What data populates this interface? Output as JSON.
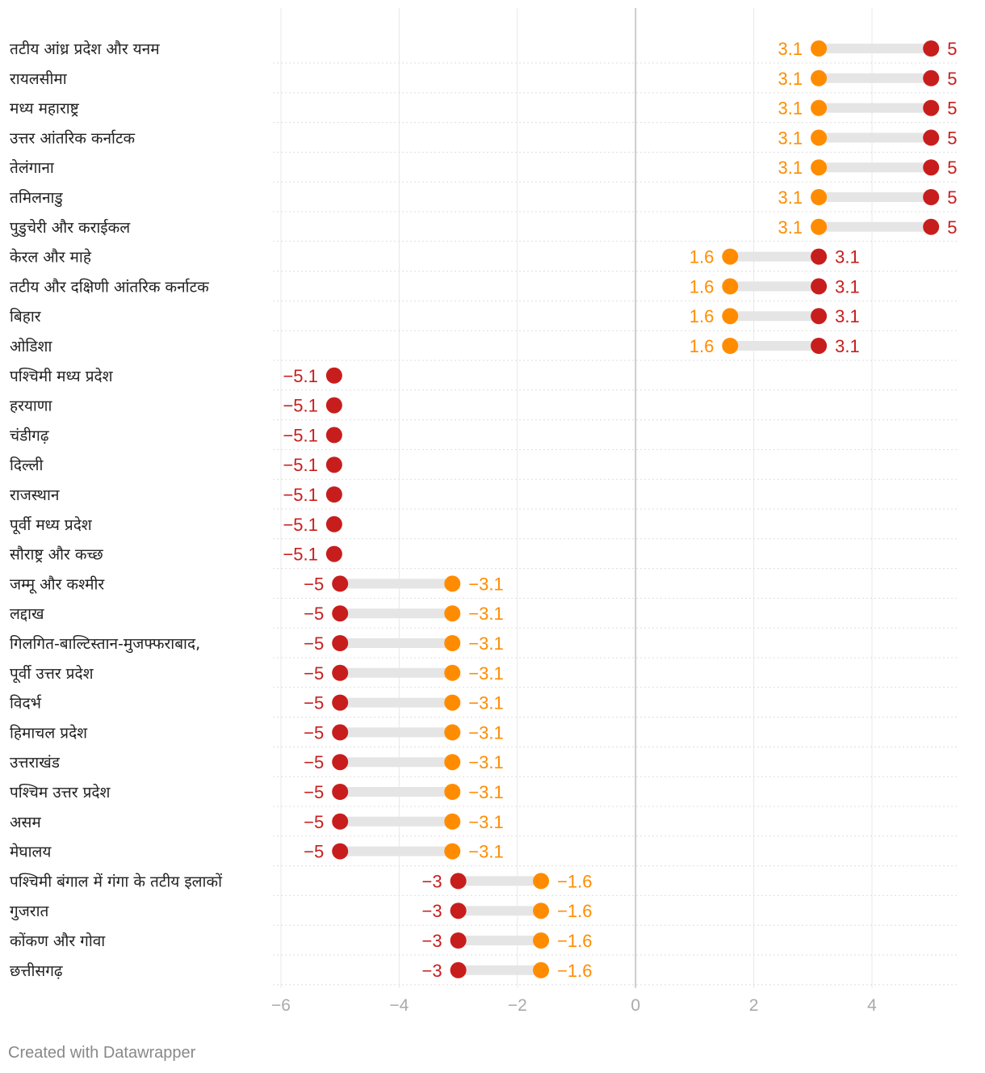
{
  "chart_data": {
    "type": "dot",
    "xlim": [
      -6,
      5.5
    ],
    "x_ticks": [
      -6,
      -4,
      -2,
      0,
      2,
      4
    ],
    "tick_labels": [
      "−6",
      "−4",
      "−2",
      "0",
      "2",
      "4"
    ],
    "colors": {
      "series_a": "#ff8c00",
      "series_b": "#c71e1d",
      "connector": "#e5e5e5",
      "zero_line": "#cccccc",
      "grid": "#dddddd"
    },
    "rows": [
      {
        "label": "तटीय आंध्र प्रदेश और यनम",
        "a": 3.1,
        "a_label": "3.1",
        "b": 5,
        "b_label": "5"
      },
      {
        "label": "रायलसीमा",
        "a": 3.1,
        "a_label": "3.1",
        "b": 5,
        "b_label": "5"
      },
      {
        "label": "मध्य महाराष्ट्र",
        "a": 3.1,
        "a_label": "3.1",
        "b": 5,
        "b_label": "5"
      },
      {
        "label": "उत्तर आंतरिक कर्नाटक",
        "a": 3.1,
        "a_label": "3.1",
        "b": 5,
        "b_label": "5"
      },
      {
        "label": "तेलंगाना",
        "a": 3.1,
        "a_label": "3.1",
        "b": 5,
        "b_label": "5"
      },
      {
        "label": "तमिलनाडु",
        "a": 3.1,
        "a_label": "3.1",
        "b": 5,
        "b_label": "5"
      },
      {
        "label": "पुडुचेरी और कराईकल",
        "a": 3.1,
        "a_label": "3.1",
        "b": 5,
        "b_label": "5"
      },
      {
        "label": "केरल और माहे",
        "a": 1.6,
        "a_label": "1.6",
        "b": 3.1,
        "b_label": "3.1"
      },
      {
        "label": "तटीय और दक्षिणी आंतरिक कर्नाटक",
        "a": 1.6,
        "a_label": "1.6",
        "b": 3.1,
        "b_label": "3.1"
      },
      {
        "label": "बिहार",
        "a": 1.6,
        "a_label": "1.6",
        "b": 3.1,
        "b_label": "3.1"
      },
      {
        "label": "ओडिशा",
        "a": 1.6,
        "a_label": "1.6",
        "b": 3.1,
        "b_label": "3.1"
      },
      {
        "label": "पश्चिमी मध्य प्रदेश",
        "a": null,
        "a_label": "",
        "b": -5.1,
        "b_label": "−5.1"
      },
      {
        "label": "हरयाणा",
        "a": null,
        "a_label": "",
        "b": -5.1,
        "b_label": "−5.1"
      },
      {
        "label": "चंडीगढ़",
        "a": null,
        "a_label": "",
        "b": -5.1,
        "b_label": "−5.1"
      },
      {
        "label": "दिल्ली",
        "a": null,
        "a_label": "",
        "b": -5.1,
        "b_label": "−5.1"
      },
      {
        "label": "राजस्थान",
        "a": null,
        "a_label": "",
        "b": -5.1,
        "b_label": "−5.1"
      },
      {
        "label": "पूर्वी मध्य प्रदेश",
        "a": null,
        "a_label": "",
        "b": -5.1,
        "b_label": "−5.1"
      },
      {
        "label": "सौराष्ट्र और कच्छ",
        "a": null,
        "a_label": "",
        "b": -5.1,
        "b_label": "−5.1"
      },
      {
        "label": "जम्मू और कश्मीर",
        "a": -3.1,
        "a_label": "−3.1",
        "b": -5,
        "b_label": "−5"
      },
      {
        "label": "लद्दाख",
        "a": -3.1,
        "a_label": "−3.1",
        "b": -5,
        "b_label": "−5"
      },
      {
        "label": "गिलगित-बाल्टिस्तान-मुजफ्फराबाद,",
        "a": -3.1,
        "a_label": "−3.1",
        "b": -5,
        "b_label": "−5"
      },
      {
        "label": "पूर्वी उत्तर प्रदेश",
        "a": -3.1,
        "a_label": "−3.1",
        "b": -5,
        "b_label": "−5"
      },
      {
        "label": "विदर्भ",
        "a": -3.1,
        "a_label": "−3.1",
        "b": -5,
        "b_label": "−5"
      },
      {
        "label": "हिमाचल प्रदेश",
        "a": -3.1,
        "a_label": "−3.1",
        "b": -5,
        "b_label": "−5"
      },
      {
        "label": "उत्तराखंड",
        "a": -3.1,
        "a_label": "−3.1",
        "b": -5,
        "b_label": "−5"
      },
      {
        "label": "पश्चिम उत्तर प्रदेश",
        "a": -3.1,
        "a_label": "−3.1",
        "b": -5,
        "b_label": "−5"
      },
      {
        "label": "असम",
        "a": -3.1,
        "a_label": "−3.1",
        "b": -5,
        "b_label": "−5"
      },
      {
        "label": "मेघालय",
        "a": -3.1,
        "a_label": "−3.1",
        "b": -5,
        "b_label": "−5"
      },
      {
        "label": "पश्चिमी बंगाल में गंगा के तटीय इलाकों",
        "a": -1.6,
        "a_label": "−1.6",
        "b": -3,
        "b_label": "−3"
      },
      {
        "label": "गुजरात",
        "a": -1.6,
        "a_label": "−1.6",
        "b": -3,
        "b_label": "−3"
      },
      {
        "label": "कोंकण और गोवा",
        "a": -1.6,
        "a_label": "−1.6",
        "b": -3,
        "b_label": "−3"
      },
      {
        "label": "छत्तीसगढ़",
        "a": -1.6,
        "a_label": "−1.6",
        "b": -3,
        "b_label": "−3"
      }
    ]
  },
  "footer": {
    "credit": "Created with Datawrapper"
  }
}
